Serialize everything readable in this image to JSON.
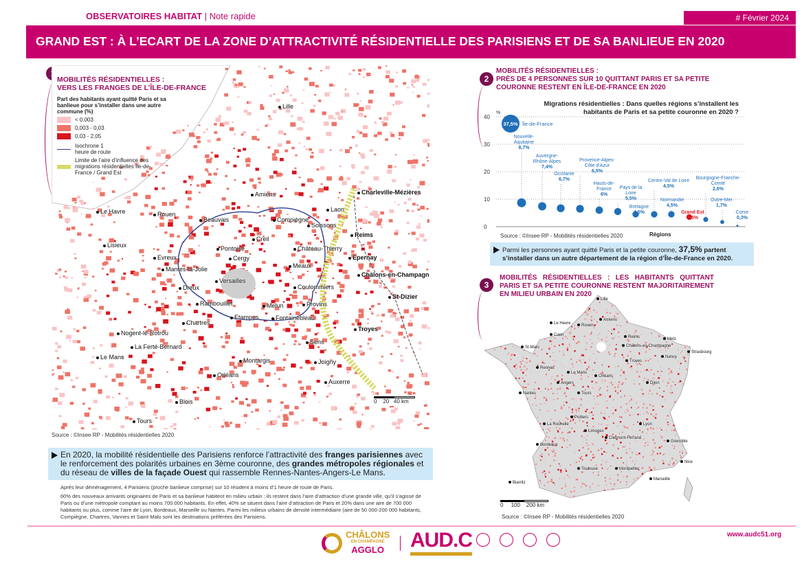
{
  "header": {
    "series": "OBSERVATOIRES",
    "series_bold": "HABITAT",
    "sep": "|",
    "note": "Note rapide",
    "date": "# Février 2024",
    "title": "GRAND EST : À L’ECART DE LA ZONE D’ATTRACTIVITÉ RÉSIDENTIELLE DES PARISIENS ET DE SA BANLIEUE EN 2020"
  },
  "section1": {
    "number": "1",
    "title_l1": "MOBILITÉS RÉSIDENTIELLES :",
    "title_l2": "VERS LES FRANGES DE L’ÎLE-DE-FRANCE",
    "legend_title": "Part des habitants ayant quitté Paris et sa banlieue pour s’installer dans une autre commune (%)",
    "classes": [
      {
        "label": "< 0,003",
        "color": "#f9c4c6"
      },
      {
        "label": "0,003 - 0,03",
        "color": "#ee7468"
      },
      {
        "label": "0,03 - 2,05",
        "color": "#d7141e"
      }
    ],
    "isochrone": "Isochrone 1 heure de route",
    "limit": "Limite de l’aire d’influence des migrations résidentielles Île-de-France / Grand Est",
    "scale": [
      "0",
      "20",
      "40 km"
    ],
    "cities": [
      "Lille",
      "Amiens",
      "Le Havre",
      "Rouen",
      "Beauvais",
      "Compiègne",
      "Laon",
      "Soissons",
      "Charleville-Mézières",
      "Lisieux",
      "Evreux",
      "Mantes-la-Jolie",
      "Creil",
      "Pontoise",
      "Cergy",
      "Château-Thierry",
      "Reims",
      "Epernay",
      "Meaux",
      "Versailles",
      "Dreux",
      "Coulommiers",
      "Châlons-en-Champagne",
      "Rambouillet",
      "Melun",
      "Provins",
      "St-Dizier",
      "Nogent-le-Rotrou",
      "Chartres",
      "Etampes",
      "Fontainebleau",
      "Troyes",
      "La Ferté-Bernard",
      "Sens",
      "Le Mans",
      "Montargis",
      "Joigny",
      "Orléans",
      "Auxerre",
      "Blois",
      "Tours"
    ],
    "source": "Source : ©Insee RP - Mobilités résidentielles 2020"
  },
  "summary": {
    "t1": "En 2020, la mobilité résidentielle des Parisiens renforce l’attractivité des ",
    "b1": "franges parisiennes",
    "t2": " avec le renforcement des polarités urbaines en 3ème couronne, des ",
    "b2": "grandes métropoles régionales",
    "t3": " et du réseau de ",
    "b3": "villes de la façade Ouest",
    "t4": " qui rassemble Rennes-Nantes-Angers-Le Mans."
  },
  "paragraphs": [
    "Après leur déménagement, 4 Parisiens (proche banlieue comprise) sur 10 résident à moins d’1 heure de route de Paris.",
    "60% des nouveaux arrivants originaires de Paris et sa banlieue habitent en milieu urbain : ils restent dans l’aire d’attraction d’une grande ville, qu’il s’agisse de Paris ou d’une métropole comptant au moins 700 000 habitants. En effet, 40% se situent dans l’aire d’attraction de Paris et 20% dans une aire de 700 000 habitants ou plus, comme l’aire de Lyon, Bordeaux, Marseille ou Nantes. Parmi les milieux urbains de densité intermédiaire (aire de 50 000-200 000 habitants, Compiègne, Chartres, Vannes et Saint-Malo sont les destinations préférées des Parisiens."
  ],
  "section2": {
    "number": "2",
    "title_l1": "MOBILITÉS RÉSIDENTIELLES :",
    "title_l2": "PRÈS DE 4 PERSONNES SUR 10 QUITTANT PARIS ET SA PETITE",
    "title_l3": "COURONNE RESTENT EN ÎLE-DE-FRANCE EN 2020",
    "source": "Source : ©Insee RP - Mobilités résidentielles 2020",
    "box_t1": "Parmi les personnes ayant quitté Paris et la petite couronne, ",
    "box_b1": "37,5%",
    "box_b2": " partent s’installer dans un autre département de la région d’Île-de-France en 2020."
  },
  "chart_data": {
    "type": "scatter",
    "title": "Migrations résidentielles : Dans quelles régions s’installent les habitants de Paris et sa petite couronne en 2020 ?",
    "xlabel": "Régions",
    "ylabel": "%",
    "ylim": [
      0,
      40
    ],
    "yticks": [
      "0",
      "10",
      "20",
      "30",
      "40"
    ],
    "categories": [
      "Île-de-France",
      "Nouvelle-Aquitaine",
      "Auvergne-Rhône-Alpes",
      "Occitanie",
      "Provence-Alpes-Côte d’Azur",
      "Hauts-de-France",
      "Pays de la Loire",
      "Bretagne",
      "Centre-Val de Loire",
      "Normandie",
      "Grand Est",
      "Bourgogne-Franche-Comté",
      "Outre-Mer",
      "Corse"
    ],
    "values": [
      37.5,
      8.7,
      7.4,
      6.7,
      6.5,
      6,
      5.5,
      4.5,
      4.5,
      4.5,
      3.5,
      2.6,
      1.7,
      0.3
    ],
    "labels": [
      "37,5%",
      "8,7%",
      "7,4%",
      "6,7%",
      "6,5%",
      "6%",
      "5,5%",
      "4,5%",
      "4,5%",
      "4,5%",
      "3,5%",
      "2,6%",
      "1,7%",
      "0,3%"
    ],
    "colors": {
      "default": "#1f6fb8",
      "highlight": "#e0141e"
    },
    "highlight": "Grand Est"
  },
  "section3": {
    "number": "3",
    "title": "MOBILITÉS RÉSIDENTIELLES : LES HABITANTS QUITTANT PARIS ET SA PETITE COURONNE RESTENT MAJORITAIREMENT EN MILIEU URBAIN EN 2020",
    "cities": [
      "Lille",
      "Amiens",
      "Le Havre",
      "Rouen",
      "Reims",
      "Metz",
      "Châlons-en-Champagne",
      "Nancy",
      "Strasbourg",
      "St-Malo",
      "Caen",
      "Rennes",
      "Le Mans",
      "Troyes",
      "Orléans",
      "Angers",
      "Nantes",
      "Tours",
      "Dijon",
      "Poitiers",
      "La Rochelle",
      "Limoges",
      "Lyon",
      "Clermont-Ferrand",
      "Grenoble",
      "Bordeaux",
      "Toulouse",
      "Montpellier",
      "Marseille",
      "Nice",
      "Biarritz"
    ],
    "scale": [
      "0",
      "100",
      "200 km"
    ],
    "source": "Source : ©Insee RP - Mobilités résidentielles 2020"
  },
  "footer": {
    "logo1_l1": "CHÂLONS",
    "logo1_l2": "EN CHAMPAGNE",
    "logo1_l3": "AGGLO",
    "logo2": "AUD.C",
    "url": "www.audc51.org"
  }
}
